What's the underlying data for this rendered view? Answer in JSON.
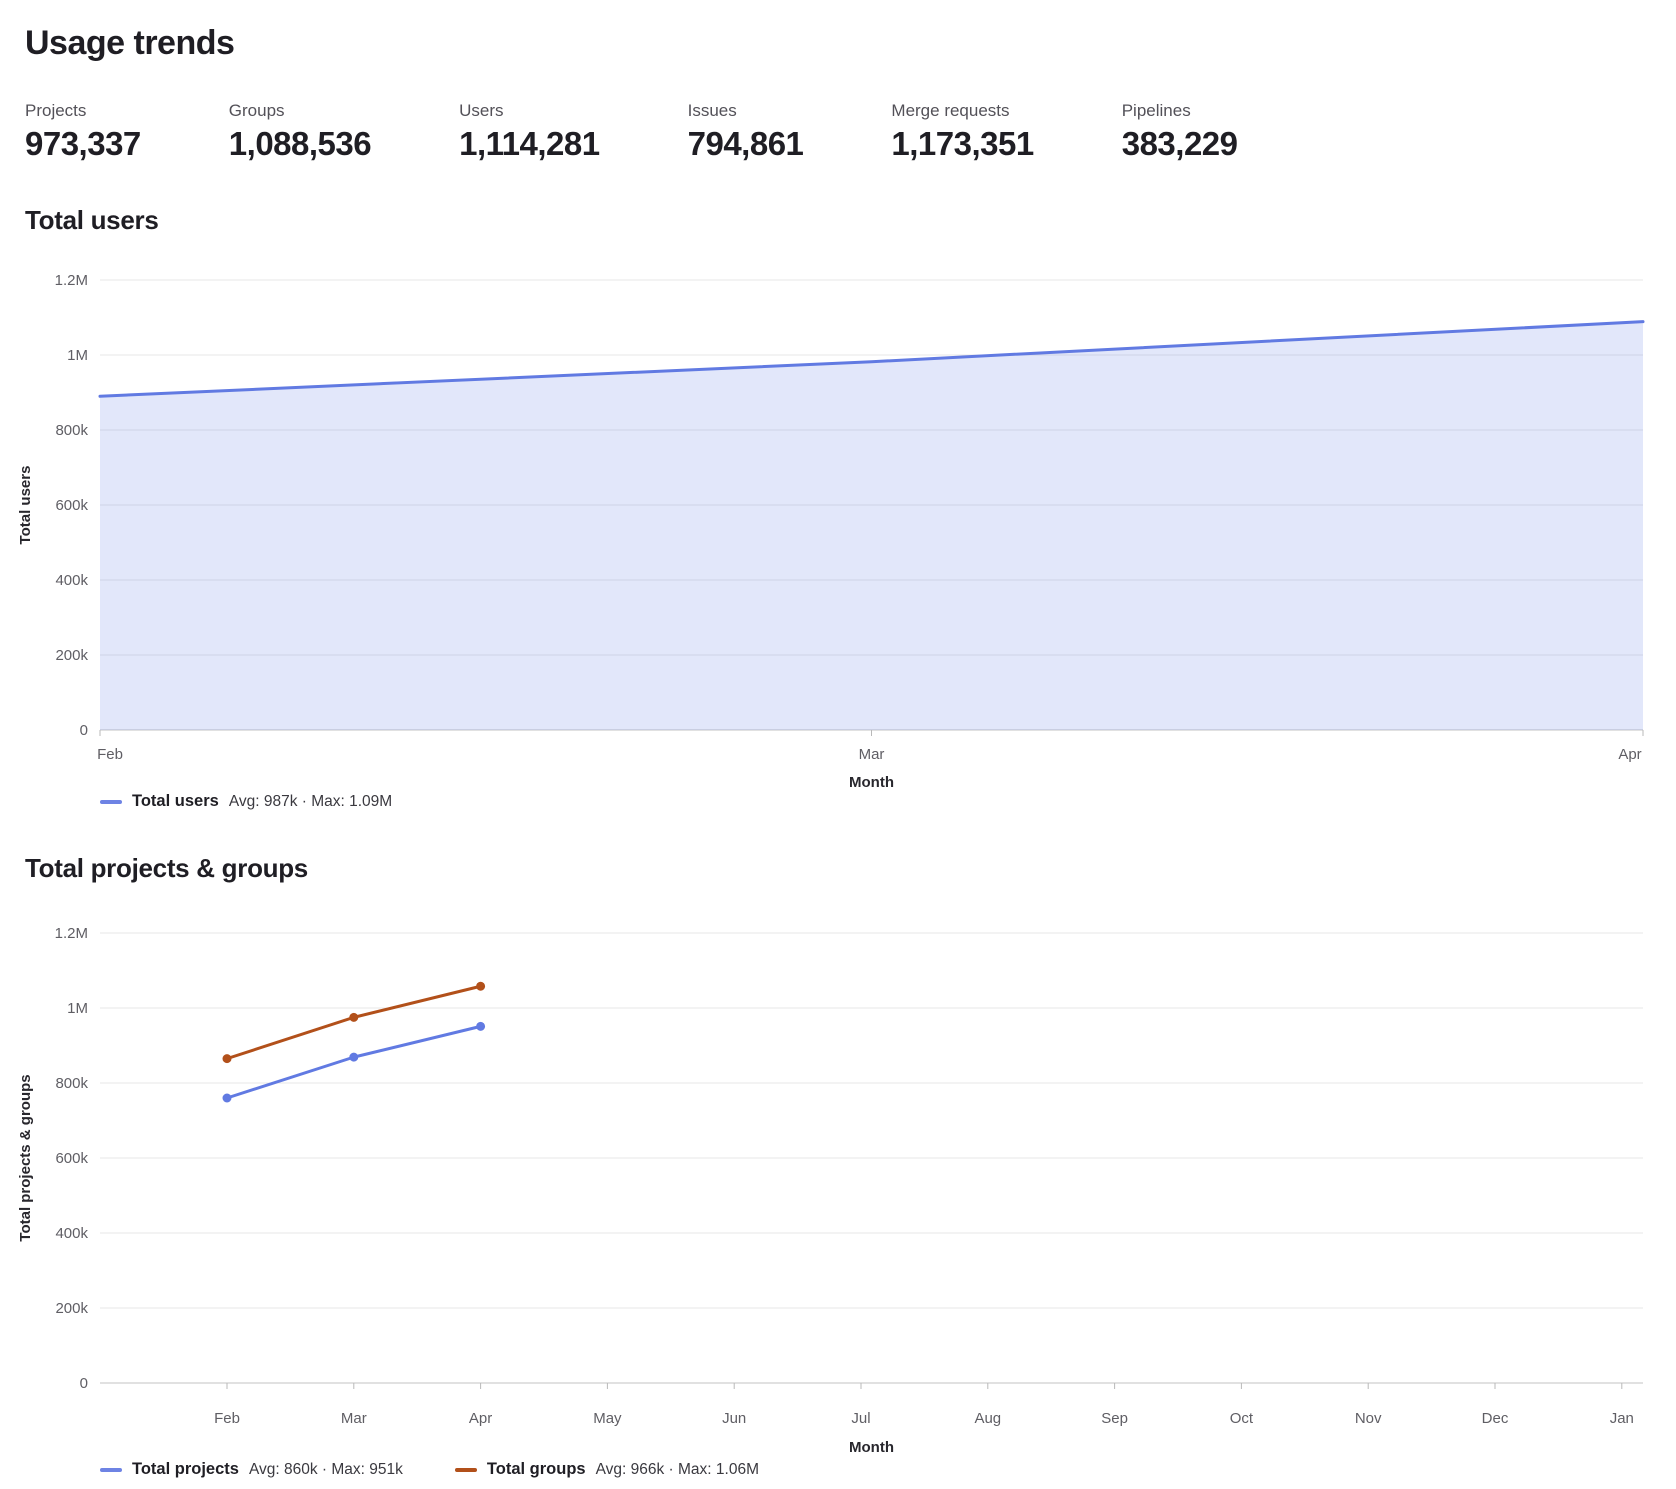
{
  "page": {
    "title": "Usage trends"
  },
  "stats": {
    "items": [
      {
        "label": "Projects",
        "value": "973,337"
      },
      {
        "label": "Groups",
        "value": "1,088,536"
      },
      {
        "label": "Users",
        "value": "1,114,281"
      },
      {
        "label": "Issues",
        "value": "794,861"
      },
      {
        "label": "Merge requests",
        "value": "1,173,351"
      },
      {
        "label": "Pipelines",
        "value": "383,229"
      }
    ]
  },
  "colors": {
    "blue": "#617ae2",
    "blue_fill": "rgba(97,122,226,0.18)",
    "orange": "#b2501a",
    "gridline": "#e7e7e7",
    "axis_line": "#c3c3c3",
    "tick_text": "#5f5e64"
  },
  "chart_data": [
    {
      "type": "area",
      "title": "Total users",
      "categories": [
        "Feb",
        "Mar",
        "Apr"
      ],
      "series": [
        {
          "name": "Total users",
          "values": [
            890000,
            982000,
            1089000
          ],
          "color": "#617ae2",
          "area": true,
          "fill": "rgba(97,122,226,0.18)",
          "dots": false
        }
      ],
      "xlabel": "Month",
      "ylabel": "Total users",
      "ylim": [
        0,
        1200000
      ],
      "y_ticks": [
        "0",
        "200k",
        "400k",
        "600k",
        "800k",
        "1M",
        "1.2M"
      ],
      "grid": true,
      "legend_position": "bottom-left",
      "legend": [
        {
          "label": "Total users",
          "stats": "Avg: 987k · Max: 1.09M",
          "color": "#617ae2"
        }
      ]
    },
    {
      "type": "line",
      "title": "Total projects & groups",
      "categories": [
        "Feb",
        "Mar",
        "Apr",
        "May",
        "Jun",
        "Jul",
        "Aug",
        "Sep",
        "Oct",
        "Nov",
        "Dec",
        "Jan"
      ],
      "series": [
        {
          "name": "Total projects",
          "values": [
            760000,
            869000,
            951000
          ],
          "color": "#617ae2",
          "area": false,
          "dots": true
        },
        {
          "name": "Total groups",
          "values": [
            865000,
            975000,
            1058000
          ],
          "color": "#b2501a",
          "area": false,
          "dots": true
        }
      ],
      "xlabel": "Month",
      "ylabel": "Total projects & groups",
      "ylim": [
        0,
        1200000
      ],
      "y_ticks": [
        "0",
        "200k",
        "400k",
        "600k",
        "800k",
        "1M",
        "1.2M"
      ],
      "grid": true,
      "legend_position": "bottom-left",
      "legend": [
        {
          "label": "Total projects",
          "stats": "Avg: 860k · Max: 951k",
          "color": "#617ae2"
        },
        {
          "label": "Total groups",
          "stats": "Avg: 966k · Max: 1.06M",
          "color": "#b2501a"
        }
      ]
    }
  ]
}
